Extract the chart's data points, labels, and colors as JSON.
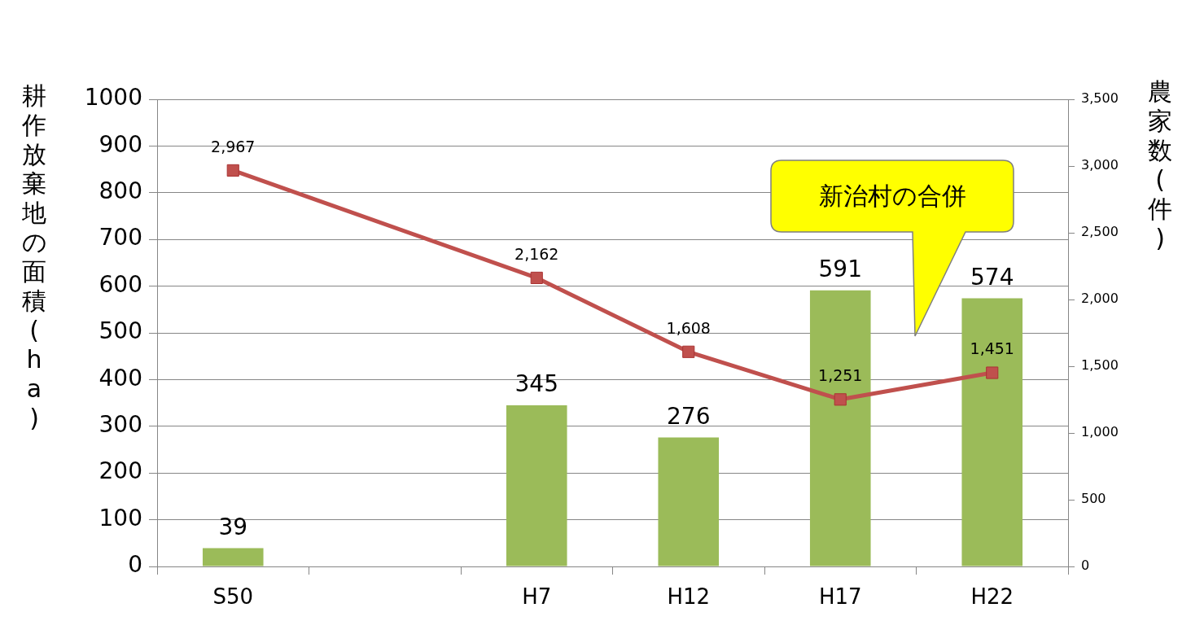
{
  "chart_data": {
    "type": "bar",
    "ylabel": "耕作放棄地の面積(ha)",
    "y2label": "農家数(件)",
    "categories": [
      "S50",
      null,
      "H7",
      "H12",
      "H17",
      "H22"
    ],
    "series": [
      {
        "color": "#9bbb59",
        "values": [
          39,
          null,
          345,
          276,
          591,
          574
        ],
        "value_labels": [
          "39",
          null,
          "345",
          "276",
          "591",
          "574"
        ]
      },
      {
        "type": "line",
        "axis": "y2",
        "color": "#c0504d",
        "marker": "square",
        "line_style": "solid",
        "values": [
          2967,
          null,
          2162,
          1608,
          1251,
          1451
        ],
        "value_labels": [
          "2,967",
          null,
          "2,162",
          "1,608",
          "1,251",
          "1,451"
        ]
      }
    ],
    "ylim": [
      0,
      1000
    ],
    "yticks": [
      0,
      100,
      200,
      300,
      400,
      500,
      600,
      700,
      800,
      900,
      1000
    ],
    "y2lim": [
      0,
      3500
    ],
    "y2ticks": [
      0,
      {
        "value": 500,
        "label": "500"
      },
      {
        "value": 1000,
        "label": "1,000"
      },
      {
        "value": 1500,
        "label": "1,500"
      },
      {
        "value": 2000,
        "label": "2,000"
      },
      {
        "value": 2500,
        "label": "2,500"
      },
      {
        "value": 3000,
        "label": "3,000"
      },
      {
        "value": 3500,
        "label": "3,500"
      }
    ],
    "grid": "y",
    "legend": false,
    "annotations": [
      "新治村の合併"
    ]
  }
}
